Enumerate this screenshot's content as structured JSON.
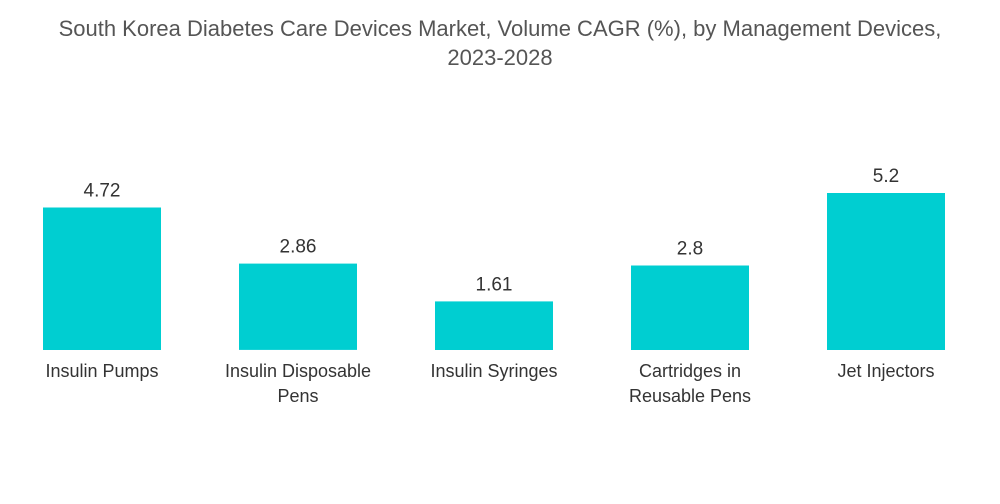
{
  "chart_data": {
    "type": "bar",
    "title": "South Korea Diabetes Care Devices Market, Volume CAGR (%), by Management Devices,\n2023-2028",
    "categories": [
      [
        "Insulin Pumps"
      ],
      [
        "Insulin Disposable",
        "Pens"
      ],
      [
        "Insulin Syringes"
      ],
      [
        "Cartridges in",
        "Reusable Pens"
      ],
      [
        "Jet Injectors"
      ]
    ],
    "values": [
      4.72,
      2.86,
      1.61,
      2.8,
      5.2
    ],
    "value_labels": [
      "4.72",
      "2.86",
      "1.61",
      "2.8",
      "5.2"
    ],
    "xlabel": "",
    "ylabel": "",
    "ylim": [
      0,
      5.2
    ],
    "grid": false,
    "legend": "none",
    "bar_color": "#00CED1"
  }
}
